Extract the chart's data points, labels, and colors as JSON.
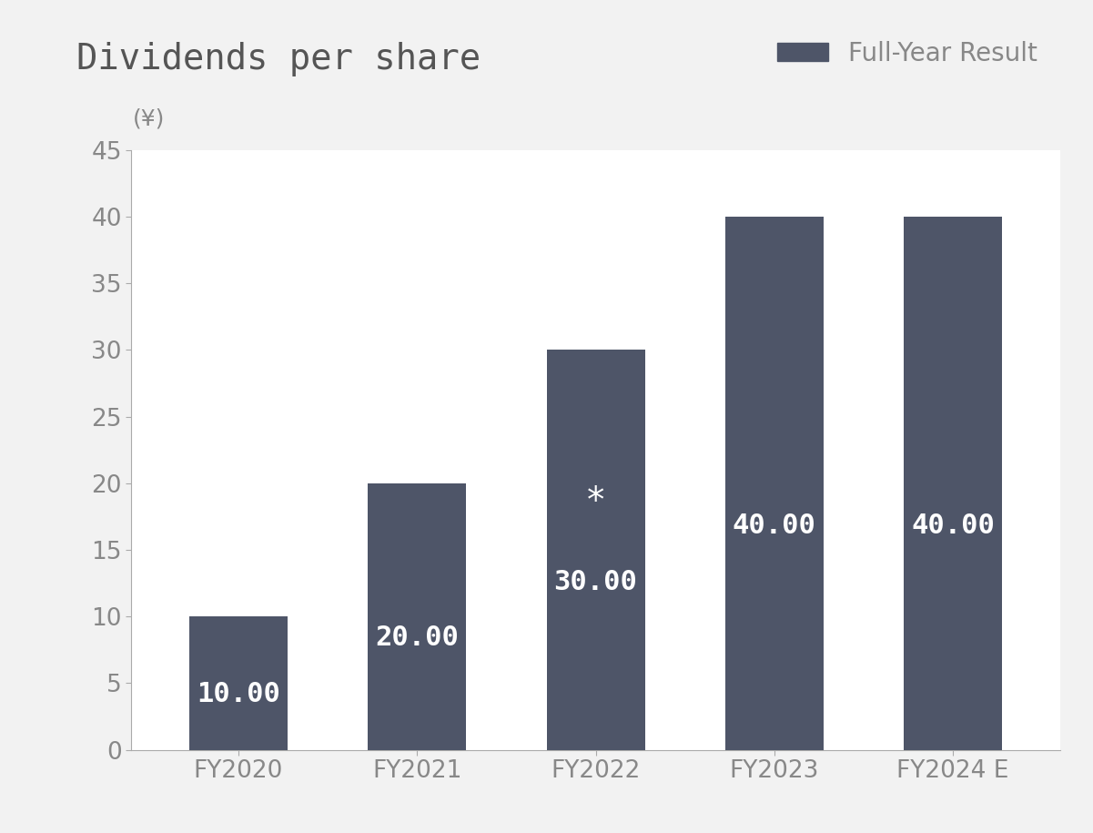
{
  "title": "Dividends per share",
  "yen_label": "(¥)",
  "categories": [
    "FY2020",
    "FY2021",
    "FY2022",
    "FY2023",
    "FY2024 E"
  ],
  "values": [
    10,
    20,
    30,
    40,
    40
  ],
  "bar_color": "#4e5568",
  "bar_labels": [
    "10.00",
    "20.00",
    "30.00",
    "40.00",
    "40.00"
  ],
  "fy2022_asterisk": true,
  "ylim": [
    0,
    45
  ],
  "yticks": [
    0,
    5,
    10,
    15,
    20,
    25,
    30,
    35,
    40,
    45
  ],
  "legend_label": "Full-Year Result",
  "legend_color": "#4e5568",
  "background_color": "#f2f2f2",
  "plot_bg_color": "#ffffff",
  "title_fontsize": 28,
  "tick_fontsize": 19,
  "bar_label_fontsize": 22,
  "legend_fontsize": 20,
  "yen_fontsize": 18
}
